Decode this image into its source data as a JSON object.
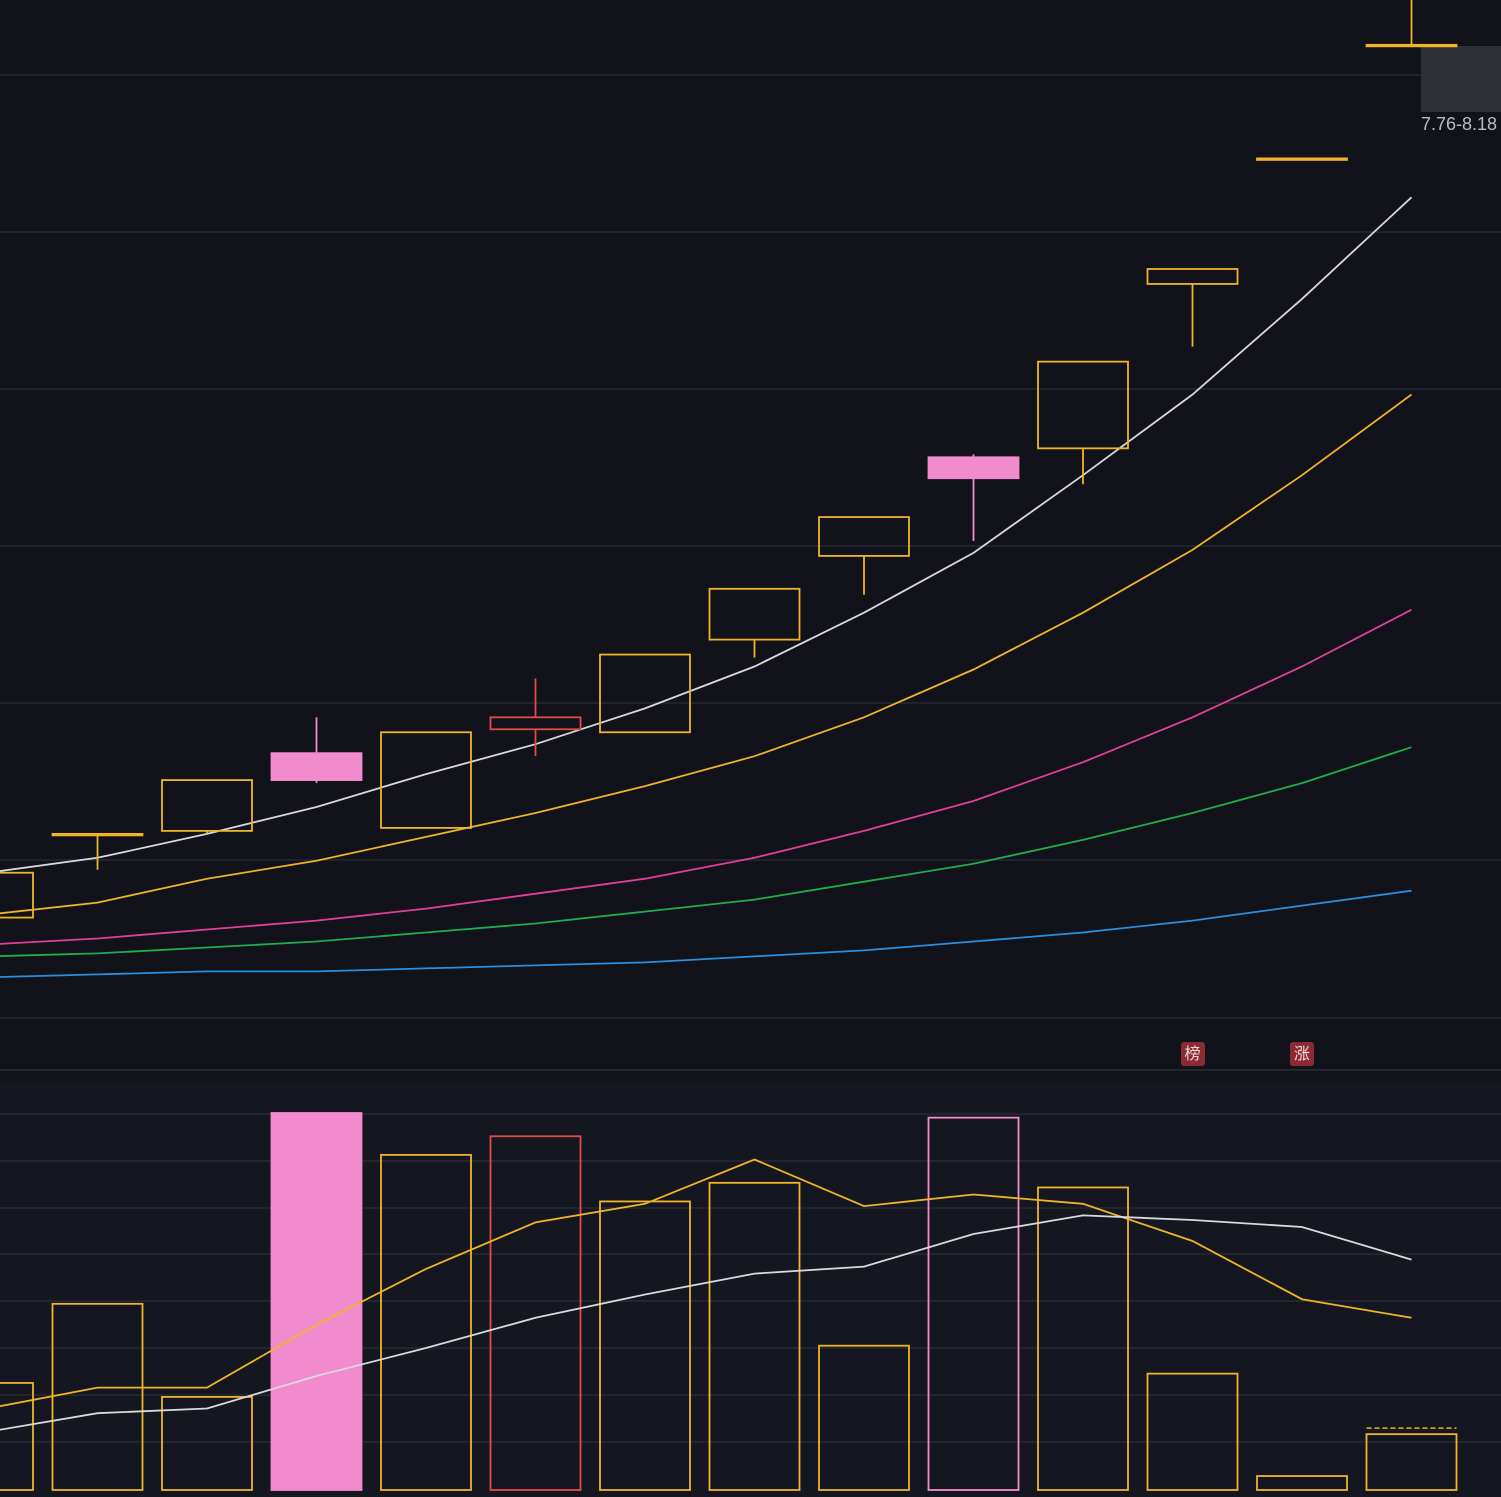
{
  "chart_data": [
    {
      "type": "candlestick",
      "title": "",
      "x": [
        1,
        2,
        3,
        4,
        5,
        6,
        7,
        8,
        9,
        10,
        11,
        12,
        13,
        14
      ],
      "range_label": "7.76-8.18",
      "colors": {
        "up": "#f0b428",
        "down": "#f28bcd",
        "flat": "#e04b4b"
      },
      "candles": [
        {
          "open": 3.86,
          "close": 4.01,
          "high": 4.01,
          "low": 3.86,
          "dir": "up"
        },
        {
          "open": 4.14,
          "close": 4.14,
          "high": 4.14,
          "low": 4.02,
          "dir": "up"
        },
        {
          "open": 4.15,
          "close": 4.32,
          "high": 4.32,
          "low": 4.14,
          "dir": "up"
        },
        {
          "open": 4.32,
          "close": 4.41,
          "high": 4.53,
          "low": 4.31,
          "dir": "down"
        },
        {
          "open": 4.16,
          "close": 4.48,
          "high": 4.48,
          "low": 4.16,
          "dir": "up"
        },
        {
          "open": 4.49,
          "close": 4.53,
          "high": 4.66,
          "low": 4.4,
          "dir": "flat"
        },
        {
          "open": 4.48,
          "close": 4.74,
          "high": 4.74,
          "low": 4.48,
          "dir": "up"
        },
        {
          "open": 4.79,
          "close": 4.96,
          "high": 4.96,
          "low": 4.73,
          "dir": "up"
        },
        {
          "open": 5.07,
          "close": 5.2,
          "high": 5.2,
          "low": 4.94,
          "dir": "up"
        },
        {
          "open": 5.33,
          "close": 5.4,
          "high": 5.41,
          "low": 5.12,
          "dir": "down"
        },
        {
          "open": 5.43,
          "close": 5.72,
          "high": 5.72,
          "low": 5.31,
          "dir": "up"
        },
        {
          "open": 5.98,
          "close": 6.03,
          "high": 6.03,
          "low": 5.77,
          "dir": "up"
        },
        {
          "open": 6.4,
          "close": 6.4,
          "high": 6.4,
          "low": 6.4,
          "dir": "up"
        },
        {
          "open": 6.78,
          "close": 6.78,
          "high": 6.93,
          "low": 6.78,
          "dir": "up"
        }
      ],
      "moving_averages": [
        {
          "color": "#d9d9dd",
          "values": [
            4.01,
            4.06,
            4.14,
            4.23,
            4.34,
            4.44,
            4.56,
            4.7,
            4.88,
            5.08,
            5.34,
            5.61,
            5.93,
            6.27
          ]
        },
        {
          "color": "#f0b428",
          "values": [
            3.87,
            3.91,
            3.99,
            4.05,
            4.13,
            4.21,
            4.3,
            4.4,
            4.53,
            4.69,
            4.88,
            5.09,
            5.34,
            5.61
          ]
        },
        {
          "color": "#e0409c",
          "values": [
            3.77,
            3.79,
            3.82,
            3.85,
            3.89,
            3.94,
            3.99,
            4.06,
            4.15,
            4.25,
            4.38,
            4.53,
            4.7,
            4.89
          ]
        },
        {
          "color": "#1fae4f",
          "values": [
            3.73,
            3.74,
            3.76,
            3.78,
            3.81,
            3.84,
            3.88,
            3.92,
            3.98,
            4.04,
            4.12,
            4.21,
            4.31,
            4.43
          ]
        },
        {
          "color": "#2a8fe0",
          "values": [
            3.66,
            3.67,
            3.68,
            3.68,
            3.69,
            3.7,
            3.71,
            3.73,
            3.75,
            3.78,
            3.81,
            3.85,
            3.9,
            3.95
          ]
        }
      ],
      "annotations": [
        {
          "x": 12,
          "text": "榜"
        },
        {
          "x": 13,
          "text": "涨"
        }
      ],
      "ylim": [
        3.35,
        6.93
      ],
      "grid": true
    },
    {
      "type": "bar",
      "title": "",
      "x": [
        1,
        2,
        3,
        4,
        5,
        6,
        7,
        8,
        9,
        10,
        11,
        12,
        13,
        14
      ],
      "colors": {
        "up": "#f0b428",
        "down": "#f28bcd",
        "flat": "#e04b4b"
      },
      "values": [
        23,
        40,
        20,
        81,
        72,
        76,
        62,
        66,
        31,
        80,
        65,
        25,
        3,
        12
      ],
      "dirs": [
        "up",
        "up",
        "up",
        "down",
        "up",
        "flat",
        "up",
        "up",
        "up",
        "down",
        "up",
        "up",
        "up",
        "up"
      ],
      "ma_lines": [
        {
          "color": "#f0b428",
          "values": [
            17.5,
            22,
            22,
            35.5,
            47.5,
            57.5,
            61.5,
            71,
            61,
            63.5,
            61.5,
            53.5,
            41,
            37
          ]
        },
        {
          "color": "#d9d9dd",
          "values": [
            12.5,
            16.5,
            17.5,
            24.5,
            30.5,
            37,
            42,
            46.5,
            48,
            55,
            59,
            58,
            56.5,
            49.5
          ]
        }
      ],
      "ylim": [
        0,
        81
      ],
      "grid": true
    }
  ]
}
